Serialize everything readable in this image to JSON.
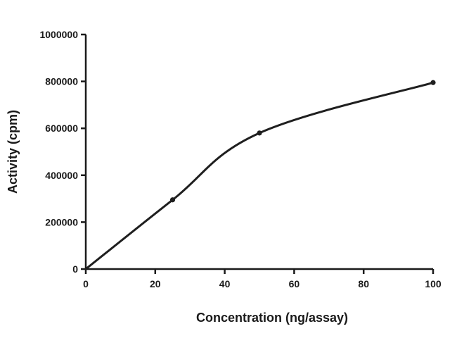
{
  "chart_data": {
    "type": "line",
    "title": "",
    "xlabel": "Concentration (ng/assay)",
    "ylabel": "Activity (cpm)",
    "xlim": [
      0,
      100
    ],
    "ylim": [
      0,
      1000000
    ],
    "x_ticks": [
      0,
      20,
      40,
      60,
      80,
      100
    ],
    "y_ticks": [
      0,
      200000,
      400000,
      600000,
      800000,
      1000000
    ],
    "x_tick_labels": [
      "0",
      "20",
      "40",
      "60",
      "80",
      "100"
    ],
    "y_tick_labels": [
      "0",
      "200000",
      "400000",
      "600000",
      "800000",
      "1000000"
    ],
    "grid": false,
    "legend": "none",
    "series": [
      {
        "color": "#1f1f1f",
        "x": [
          0,
          25,
          50,
          100
        ],
        "y": [
          0,
          295000,
          580000,
          795000
        ]
      }
    ]
  }
}
